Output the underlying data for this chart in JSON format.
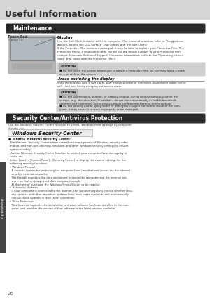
{
  "page_title": "Useful Information",
  "page_number": "26",
  "bg_color_page": "#e8e8e8",
  "bg_color_white": "#ffffff",
  "sidebar_color": "#444444",
  "sidebar_text": "Operation",
  "section1_title": "Maintenance",
  "section1_title_bg": "#2a2a2a",
  "section1_title_color": "#ffffff",
  "touch_pad_label": "Touch Pad",
  "touch_pad_sub": "↗ page 20",
  "display_heading": "Display",
  "caution1_label": "CAUTION",
  "caution1_text": "Do not touch the screen before you re-attach a Protective Film, as you may leave a mark\nor a scratch on the screen.",
  "areas_heading": "Areas excluding the display",
  "areas_text": "Wipe these areas with a soft cloth, after applying water or detergent diluted with water to the\nsoft cloth and firmly wringing out excess water.",
  "caution2_label": "CAUTION",
  "caution2_text1": "Do not use benzene, thinner, or rubbing alcohol. Doing so may adversely affect the\nsurface, e.g., discoloration. In addition, do not use commercially-available household\ncleaners and cosmetics, as they may contain components harmful to the surface.",
  "caution2_text2": "Do not directly add or spray water or detergent. If liquid enters the inside of the com-\nputer, it may cause it to work improperly or be damaged.",
  "section2_title": "Security Center/Antivirus Protection",
  "section2_title_bg": "#2a2a2a",
  "section2_title_color": "#ffffff",
  "security_intro": "Use the Windows Security Center function to protect Windows from damage by computer\nviruses, etc.",
  "windows_sc_title": "Windows Security Center",
  "bullet_title": "What is Windows Security Center?",
  "bullet_body": "The Windows Security Center allows centralized management of Windows security infor-\nmation, and monitors antivirus measures and other Windows security settings to ensure\noptimum safety.\nUse the Windows Security Center function to protect your computer from damage by vi-\nruses, etc.\nSelect [start] - [Control Panel] - [Security Center] to display the current settings for the\nfollowing security functions.\n• Windows Firewall\n  A security system for protecting the computer from unauthorized access via the Internet\n  or other external networks.\n  The firewall regulates the data exchanged between the computer and the external net-\n  work, so that only approved data can pass through.\n  At the time of purchase, the Windows Firewall is set to be enabled.\n• Automatic Updates\n  If your computer is connected to the Internet, this function regularly checks whether secu-\n  rity updates and other important updates have been made available, and automatically\n  installs these updates in their latest conditions.\n• Virus Protection\n  This function regularly checks whether antivirus software has been installed in the com-\n  puter, and whether the version of that software is the latest version available.",
  "display_body": "Use the Soft Cloth included with the computer. (For more information, refer to \"Suggestions\nAbout Cleaning the LCD Surface\" that comes with the Soft Cloth.)\nIf the Protective Film becomes damaged, it may be time to replace your Protective Film. The\nProtective Film is a disposable item. To find out the model number of your Protective Film,\ncontact Panasonic Technical Support. (For more information, refer to the \"Operating Instruc-\ntions\" that come with the Protective Film.)"
}
